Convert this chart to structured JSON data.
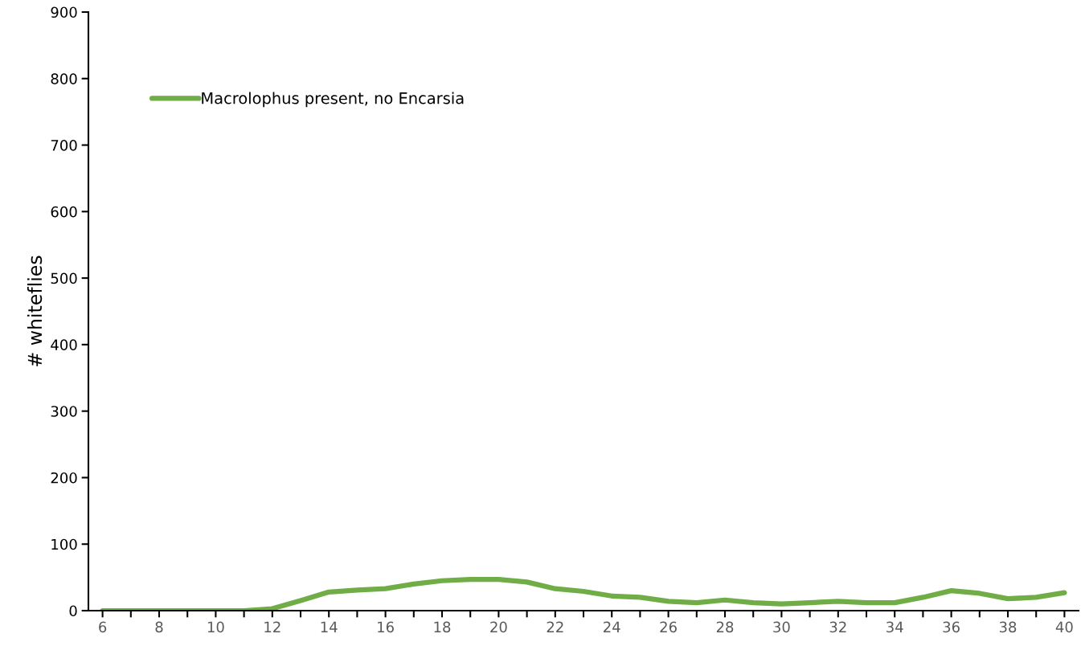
{
  "chart_data": {
    "type": "line",
    "ylabel": "# whiteflies",
    "x": [
      6,
      7,
      8,
      9,
      10,
      11,
      12,
      13,
      14,
      15,
      16,
      17,
      18,
      19,
      20,
      21,
      22,
      23,
      24,
      25,
      26,
      27,
      28,
      29,
      30,
      31,
      32,
      33,
      34,
      35,
      36,
      37,
      38,
      39,
      40
    ],
    "series": [
      {
        "name": "Macrolophus present, no Encarsia",
        "color": "#70ad47",
        "values": [
          0,
          0,
          0,
          0,
          0,
          0,
          3,
          15,
          28,
          31,
          33,
          40,
          45,
          47,
          47,
          43,
          33,
          29,
          22,
          20,
          14,
          12,
          16,
          12,
          10,
          12,
          14,
          12,
          12,
          20,
          30,
          26,
          18,
          20,
          27
        ]
      }
    ],
    "xlim": [
      5.5,
      40.5
    ],
    "xticks": [
      6,
      {
        "value": 7,
        "label": null
      },
      8,
      {
        "value": 9,
        "label": null
      },
      10,
      {
        "value": 11,
        "label": null
      },
      12,
      {
        "value": 13,
        "label": null
      },
      14,
      {
        "value": 15,
        "label": null
      },
      16,
      {
        "value": 17,
        "label": null
      },
      18,
      {
        "value": 19,
        "label": null
      },
      20,
      {
        "value": 21,
        "label": null
      },
      22,
      {
        "value": 23,
        "label": null
      },
      24,
      {
        "value": 25,
        "label": null
      },
      26,
      {
        "value": 27,
        "label": null
      },
      28,
      {
        "value": 29,
        "label": null
      },
      30,
      {
        "value": 31,
        "label": null
      },
      32,
      {
        "value": 33,
        "label": null
      },
      34,
      {
        "value": 35,
        "label": null
      },
      36,
      {
        "value": 37,
        "label": null
      },
      38,
      {
        "value": 39,
        "label": null
      },
      40
    ],
    "ylim": [
      0,
      900
    ],
    "yticks": [
      0,
      100,
      200,
      300,
      400,
      500,
      600,
      700,
      800,
      900
    ],
    "grid": false,
    "legend": "top left",
    "marker": "none",
    "line_style": "solid"
  }
}
